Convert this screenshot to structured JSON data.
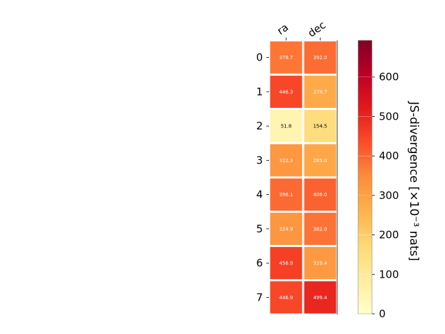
{
  "chart_data": {
    "type": "heatmap",
    "columns": [
      "ra",
      "dec"
    ],
    "rows": [
      "0",
      "1",
      "2",
      "3",
      "4",
      "5",
      "6",
      "7"
    ],
    "values": [
      [
        378.7,
        392.0
      ],
      [
        446.3,
        278.7
      ],
      [
        51.8,
        154.5
      ],
      [
        322.3,
        285.0
      ],
      [
        396.1,
        406.0
      ],
      [
        324.9,
        382.0
      ],
      [
        456.9,
        319.4
      ],
      [
        446.9,
        499.4
      ]
    ],
    "value_format_decimals": 1,
    "colorbar": {
      "label": "JS-divergence [×10⁻³ nats]",
      "min": 0,
      "max": 693,
      "ticks": [
        0,
        100,
        200,
        300,
        400,
        500,
        600
      ],
      "colormap": "YlOrRd"
    }
  }
}
